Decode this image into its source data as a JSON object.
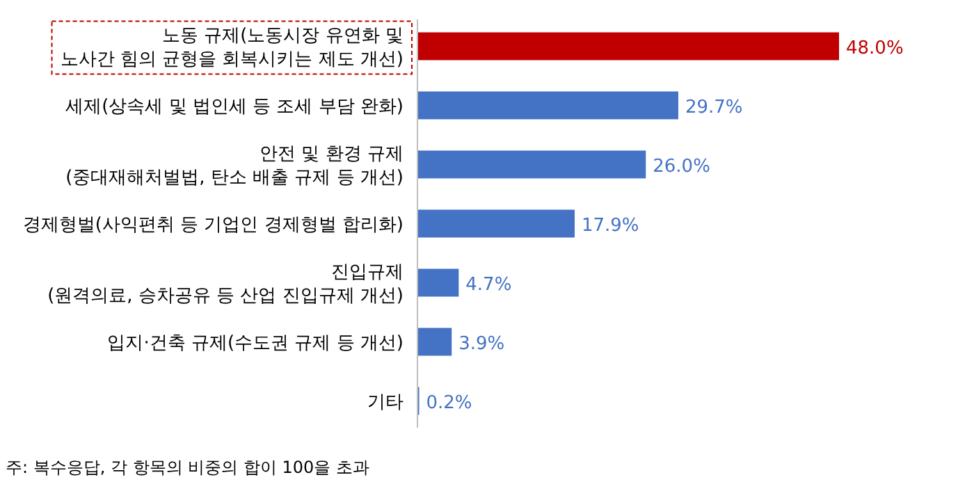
{
  "chart_data": {
    "type": "bar",
    "orientation": "horizontal",
    "categories": [
      "노동 규제(노동시장 유연화 및\n노사간 힘의 균형을 회복시키는 제도 개선)",
      "세제(상속세 및 법인세 등 조세 부담 완화)",
      "안전 및 환경 규제\n(중대재해처벌법, 탄소 배출 규제 등 개선)",
      "경제형벌(사익편취 등 기업인 경제형벌 합리화)",
      "진입규제\n(원격의료, 승차공유 등 산업 진입규제 개선)",
      "입지·건축 규제(수도권 규제 등 개선)",
      "기타"
    ],
    "values": [
      48.0,
      29.7,
      26.0,
      17.9,
      4.7,
      3.9,
      0.2
    ],
    "value_labels": [
      "48.0%",
      "29.7%",
      "26.0%",
      "17.9%",
      "4.7%",
      "3.9%",
      "0.2%"
    ],
    "colors": [
      "#c00000",
      "#4472c4",
      "#4472c4",
      "#4472c4",
      "#4472c4",
      "#4472c4",
      "#4472c4"
    ],
    "annotations": [
      "주: 복수응답, 각 항목의 비중의 합이 100을 초과"
    ]
  }
}
